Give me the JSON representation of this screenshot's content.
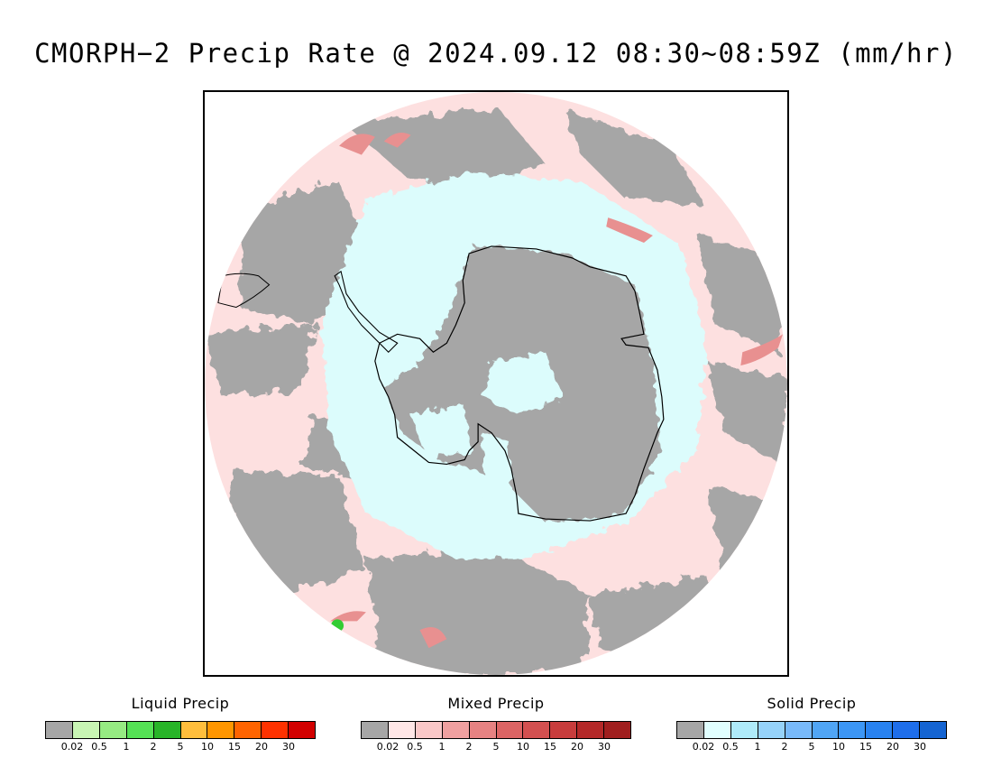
{
  "title": "CMORPH−2 Precip Rate @ 2024.09.12 08:30∼08:59Z (mm/hr)",
  "map": {
    "projection": "south-polar-stereographic",
    "continent": "Antarctica",
    "colors": {
      "ocean_light_precip": "#fde0e0",
      "land_light_precip": "#dcfcfc",
      "trace": "#a6a6a6",
      "mixed_moderate": "#e89090",
      "liquid_spot": "#33cc33"
    }
  },
  "legends": [
    {
      "title": "Liquid Precip",
      "ticks": [
        "0.02",
        "0.5",
        "1",
        "2",
        "5",
        "10",
        "15",
        "20",
        "30"
      ],
      "colors": [
        "#a6a6a6",
        "#c8f5b4",
        "#96eb82",
        "#55e155",
        "#28b428",
        "#ffbe3c",
        "#ff9600",
        "#ff6400",
        "#ff3200",
        "#d20000"
      ]
    },
    {
      "title": "Mixed Precip",
      "ticks": [
        "0.02",
        "0.5",
        "1",
        "2",
        "5",
        "10",
        "15",
        "20",
        "30"
      ],
      "colors": [
        "#a6a6a6",
        "#ffe6e6",
        "#fac8c8",
        "#f0a0a0",
        "#e68282",
        "#dc6464",
        "#d25050",
        "#c83c3c",
        "#b42828",
        "#a01e1e"
      ]
    },
    {
      "title": "Solid Precip",
      "ticks": [
        "0.02",
        "0.5",
        "1",
        "2",
        "5",
        "10",
        "15",
        "20",
        "30"
      ],
      "colors": [
        "#a6a6a6",
        "#e1ffff",
        "#afebfa",
        "#96d2fa",
        "#78b9fa",
        "#50a5f5",
        "#3c96f5",
        "#2882f0",
        "#1e6eeb",
        "#1464d2"
      ]
    }
  ]
}
